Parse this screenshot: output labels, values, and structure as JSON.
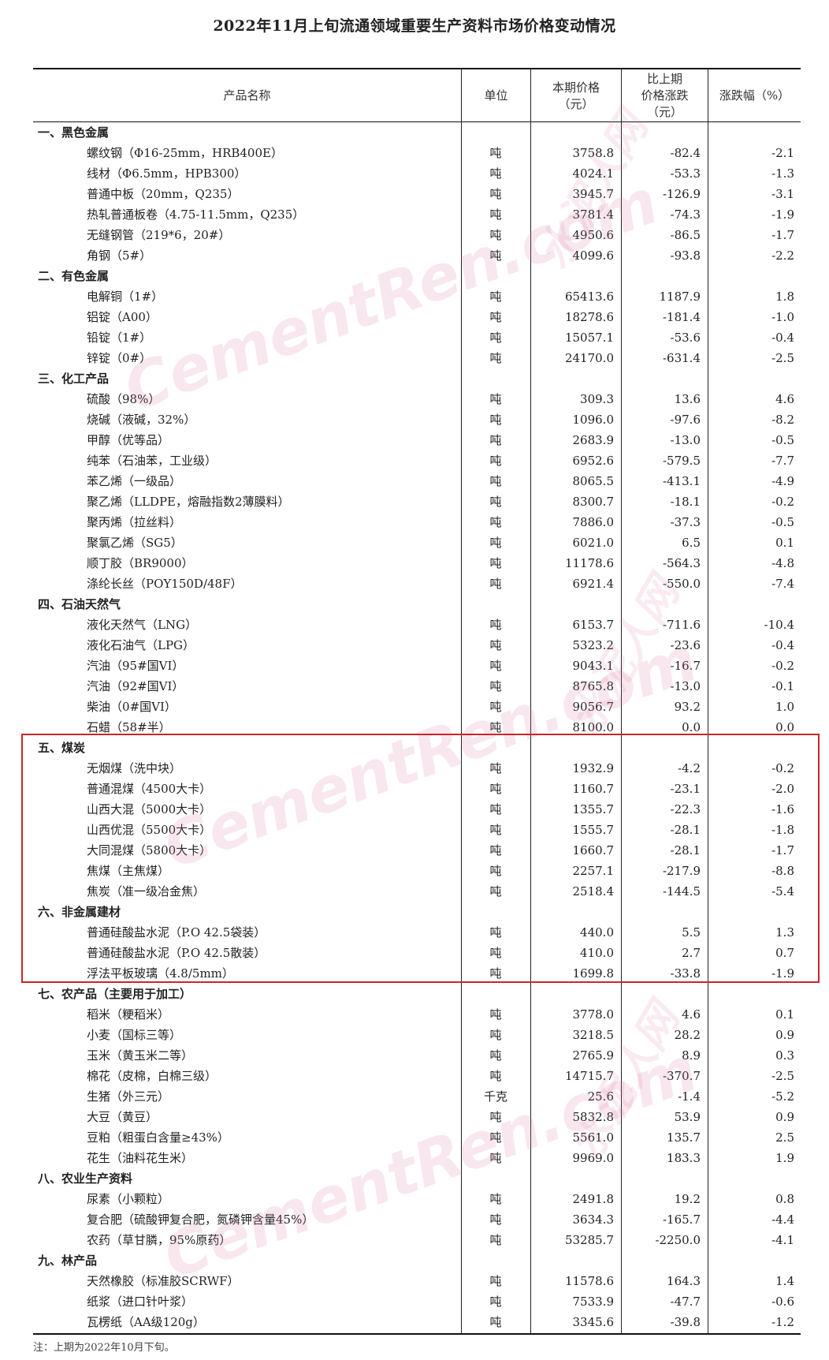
{
  "title": "2022年11月上旬流通领域重要生产资料市场价格变动情况",
  "headers": {
    "name": "产品名称",
    "unit": "单位",
    "price": "本期价格\n（元）",
    "change": "比上期\n价格涨跌\n（元）",
    "pct": "涨跌幅（%）"
  },
  "categories": [
    {
      "label": "一、黑色金属",
      "items": [
        [
          "螺纹钢（Φ16-25mm，HRB400E）",
          "吨",
          "3758.8",
          "-82.4",
          "-2.1"
        ],
        [
          "线材（Φ6.5mm，HPB300）",
          "吨",
          "4024.1",
          "-53.3",
          "-1.3"
        ],
        [
          "普通中板（20mm，Q235）",
          "吨",
          "3945.7",
          "-126.9",
          "-3.1"
        ],
        [
          "热轧普通板卷（4.75-11.5mm，Q235）",
          "吨",
          "3781.4",
          "-74.3",
          "-1.9"
        ],
        [
          "无缝钢管（219*6，20#）",
          "吨",
          "4950.6",
          "-86.5",
          "-1.7"
        ],
        [
          "角钢（5#）",
          "吨",
          "4099.6",
          "-93.8",
          "-2.2"
        ]
      ]
    },
    {
      "label": "二、有色金属",
      "items": [
        [
          "电解铜（1#）",
          "吨",
          "65413.6",
          "1187.9",
          "1.8"
        ],
        [
          "铝锭（A00）",
          "吨",
          "18278.6",
          "-181.4",
          "-1.0"
        ],
        [
          "铅锭（1#）",
          "吨",
          "15057.1",
          "-53.6",
          "-0.4"
        ],
        [
          "锌锭（0#）",
          "吨",
          "24170.0",
          "-631.4",
          "-2.5"
        ]
      ]
    },
    {
      "label": "三、化工产品",
      "items": [
        [
          "硫酸（98%）",
          "吨",
          "309.3",
          "13.6",
          "4.6"
        ],
        [
          "烧碱（液碱，32%）",
          "吨",
          "1096.0",
          "-97.6",
          "-8.2"
        ],
        [
          "甲醇（优等品）",
          "吨",
          "2683.9",
          "-13.0",
          "-0.5"
        ],
        [
          "纯苯（石油苯，工业级）",
          "吨",
          "6952.6",
          "-579.5",
          "-7.7"
        ],
        [
          "苯乙烯（一级品）",
          "吨",
          "8065.5",
          "-413.1",
          "-4.9"
        ],
        [
          "聚乙烯（LLDPE，熔融指数2薄膜料）",
          "吨",
          "8300.7",
          "-18.1",
          "-0.2"
        ],
        [
          "聚丙烯（拉丝料）",
          "吨",
          "7886.0",
          "-37.3",
          "-0.5"
        ],
        [
          "聚氯乙烯（SG5）",
          "吨",
          "6021.0",
          "6.5",
          "0.1"
        ],
        [
          "顺丁胶（BR9000）",
          "吨",
          "11178.6",
          "-564.3",
          "-4.8"
        ],
        [
          "涤纶长丝（POY150D/48F）",
          "吨",
          "6921.4",
          "-550.0",
          "-7.4"
        ]
      ]
    },
    {
      "label": "四、石油天然气",
      "items": [
        [
          "液化天然气（LNG）",
          "吨",
          "6153.7",
          "-711.6",
          "-10.4"
        ],
        [
          "液化石油气（LPG）",
          "吨",
          "5323.2",
          "-23.6",
          "-0.4"
        ],
        [
          "汽油（95#国VI）",
          "吨",
          "9043.1",
          "-16.7",
          "-0.2"
        ],
        [
          "汽油（92#国VI）",
          "吨",
          "8765.8",
          "-13.0",
          "-0.1"
        ],
        [
          "柴油（0#国VI）",
          "吨",
          "9056.7",
          "93.2",
          "1.0"
        ],
        [
          "石蜡（58#半）",
          "吨",
          "8100.0",
          "0.0",
          "0.0"
        ]
      ]
    },
    {
      "label": "五、煤炭",
      "items": [
        [
          "无烟煤（洗中块）",
          "吨",
          "1932.9",
          "-4.2",
          "-0.2"
        ],
        [
          "普通混煤（4500大卡）",
          "吨",
          "1160.7",
          "-23.1",
          "-2.0"
        ],
        [
          "山西大混（5000大卡）",
          "吨",
          "1355.7",
          "-22.3",
          "-1.6"
        ],
        [
          "山西优混（5500大卡）",
          "吨",
          "1555.7",
          "-28.1",
          "-1.8"
        ],
        [
          "大同混煤（5800大卡）",
          "吨",
          "1660.7",
          "-28.1",
          "-1.7"
        ],
        [
          "焦煤（主焦煤）",
          "吨",
          "2257.1",
          "-217.9",
          "-8.8"
        ],
        [
          "焦炭（准一级冶金焦）",
          "吨",
          "2518.4",
          "-144.5",
          "-5.4"
        ]
      ]
    },
    {
      "label": "六、非金属建材",
      "items": [
        [
          "普通硅酸盐水泥（P.O 42.5袋装）",
          "吨",
          "440.0",
          "5.5",
          "1.3"
        ],
        [
          "普通硅酸盐水泥（P.O 42.5散装）",
          "吨",
          "410.0",
          "2.7",
          "0.7"
        ],
        [
          "浮法平板玻璃（4.8/5mm）",
          "吨",
          "1699.8",
          "-33.8",
          "-1.9"
        ]
      ]
    },
    {
      "label": "七、农产品（主要用于加工）",
      "items": [
        [
          "稻米（粳稻米）",
          "吨",
          "3778.0",
          "4.6",
          "0.1"
        ],
        [
          "小麦（国标三等）",
          "吨",
          "3218.5",
          "28.2",
          "0.9"
        ],
        [
          "玉米（黄玉米二等）",
          "吨",
          "2765.9",
          "8.9",
          "0.3"
        ],
        [
          "棉花（皮棉，白棉三级）",
          "吨",
          "14715.7",
          "-370.7",
          "-2.5"
        ],
        [
          "生猪（外三元）",
          "千克",
          "25.6",
          "-1.4",
          "-5.2"
        ],
        [
          "大豆（黄豆）",
          "吨",
          "5832.8",
          "53.9",
          "0.9"
        ],
        [
          "豆粕（粗蛋白含量≥43%）",
          "吨",
          "5561.0",
          "135.7",
          "2.5"
        ],
        [
          "花生（油料花生米）",
          "吨",
          "9969.0",
          "183.3",
          "1.9"
        ]
      ]
    },
    {
      "label": "八、农业生产资料",
      "items": [
        [
          "尿素（小颗粒）",
          "吨",
          "2491.8",
          "19.2",
          "0.8"
        ],
        [
          "复合肥（硫酸钾复合肥，氮磷钾含量45%）",
          "吨",
          "3634.3",
          "-165.7",
          "-4.4"
        ],
        [
          "农药（草甘膦，95%原药）",
          "吨",
          "53285.7",
          "-2250.0",
          "-4.1"
        ]
      ]
    },
    {
      "label": "九、林产品",
      "items": [
        [
          "天然橡胶（标准胶SCRWF）",
          "吨",
          "11578.6",
          "164.3",
          "1.4"
        ],
        [
          "纸浆（进口针叶浆）",
          "吨",
          "7533.9",
          "-47.7",
          "-0.6"
        ],
        [
          "瓦楞纸（AA级120g）",
          "吨",
          "3345.6",
          "-39.8",
          "-1.2"
        ]
      ]
    }
  ],
  "note": "注：上期为2022年10月下旬。",
  "watermark": {
    "latin": "CementRen.com",
    "cjk": "水泥人网"
  },
  "colors": {
    "highlight_box": "#c8252c"
  }
}
